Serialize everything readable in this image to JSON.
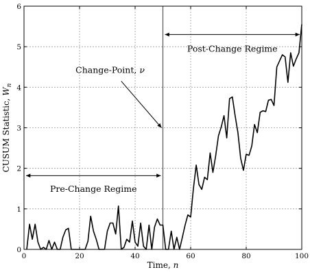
{
  "chart_data": {
    "type": "line",
    "title": "",
    "xlabel": "Time,",
    "xlabel_var": "n",
    "ylabel": "CUSUM Statistic,",
    "ylabel_var": "W",
    "ylabel_sub": "n",
    "xlim": [
      0,
      100
    ],
    "ylim": [
      0,
      6
    ],
    "xticks": [
      0,
      20,
      40,
      60,
      80,
      100
    ],
    "yticks": [
      0,
      1,
      2,
      3,
      4,
      5,
      6
    ],
    "grid": true,
    "change_point_x": 50,
    "series": [
      {
        "color": "#000000",
        "x": [
          1,
          2,
          3,
          4,
          5,
          6,
          7,
          8,
          9,
          10,
          11,
          12,
          13,
          14,
          15,
          16,
          17,
          18,
          19,
          20,
          21,
          22,
          23,
          24,
          25,
          26,
          27,
          28,
          29,
          30,
          31,
          32,
          33,
          34,
          35,
          36,
          37,
          38,
          39,
          40,
          41,
          42,
          43,
          44,
          45,
          46,
          47,
          48,
          49,
          50,
          51,
          52,
          53,
          54,
          55,
          56,
          57,
          58,
          59,
          60,
          61,
          62,
          63,
          64,
          65,
          66,
          67,
          68,
          69,
          70,
          71,
          72,
          73,
          74,
          75,
          76,
          77,
          78,
          79,
          80,
          81,
          82,
          83,
          84,
          85,
          86,
          87,
          88,
          89,
          90,
          91,
          92,
          93,
          94,
          95,
          96,
          97,
          98,
          99,
          100
        ],
        "y": [
          0.0,
          0.62,
          0.25,
          0.62,
          0.18,
          0.0,
          0.05,
          0.0,
          0.22,
          0.0,
          0.18,
          0.0,
          0.0,
          0.3,
          0.48,
          0.52,
          0.0,
          0.0,
          0.0,
          0.0,
          0.0,
          0.0,
          0.2,
          0.82,
          0.45,
          0.25,
          0.0,
          0.0,
          0.0,
          0.45,
          0.65,
          0.65,
          0.38,
          1.07,
          0.0,
          0.05,
          0.25,
          0.18,
          0.7,
          0.18,
          0.08,
          0.65,
          0.08,
          0.0,
          0.6,
          0.0,
          0.55,
          0.75,
          0.6,
          0.6,
          0.0,
          0.0,
          0.45,
          0.0,
          0.3,
          0.0,
          0.3,
          0.6,
          0.85,
          0.8,
          1.5,
          2.08,
          1.6,
          1.48,
          1.78,
          1.72,
          2.38,
          1.9,
          2.3,
          2.8,
          3.02,
          3.3,
          2.75,
          3.72,
          3.76,
          3.3,
          2.88,
          2.25,
          1.95,
          2.35,
          2.32,
          2.55,
          3.08,
          2.88,
          3.38,
          3.42,
          3.4,
          3.68,
          3.7,
          3.55,
          4.5,
          4.65,
          4.8,
          4.75,
          4.12,
          4.85,
          4.52,
          4.7,
          4.85,
          5.55
        ]
      }
    ],
    "annotations": [
      {
        "text": "Post-Change Regime",
        "arrow": "double",
        "from_x": 50,
        "to_x": 100,
        "y": 5.3,
        "text_x": 75,
        "text_y": 4.88
      },
      {
        "text": "Pre-Change Regime",
        "arrow": "double",
        "from_x": 0,
        "to_x": 50,
        "y": 1.82,
        "text_x": 25,
        "text_y": 1.42
      },
      {
        "text": "Change-Point,",
        "var": "ν",
        "arrow": "single",
        "text_x": 31,
        "text_y": 4.35,
        "arrow_from_x": 35,
        "arrow_from_y": 4.15,
        "arrow_to_x": 49.5,
        "arrow_to_y": 3.0
      }
    ]
  }
}
